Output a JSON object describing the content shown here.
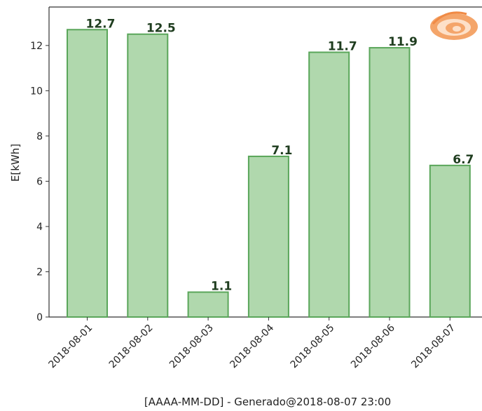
{
  "chart_data": {
    "type": "bar",
    "title": "",
    "xlabel": "[AAAA-MM-DD] - Generado@2018-08-07 23:00",
    "ylabel": "E[kWh]",
    "categories": [
      "2018-08-01",
      "2018-08-02",
      "2018-08-03",
      "2018-08-04",
      "2018-08-05",
      "2018-08-06",
      "2018-08-07"
    ],
    "values": [
      12.7,
      12.5,
      1.1,
      7.1,
      11.7,
      11.9,
      6.7
    ],
    "value_labels": [
      "12.7",
      "12.5",
      "1.1",
      "7.1",
      "11.7",
      "11.9",
      "6.7"
    ],
    "yticks": [
      0,
      2,
      4,
      6,
      8,
      10,
      12
    ],
    "ylim": [
      0,
      13.7
    ],
    "grid": false,
    "legend": "none",
    "colors": {
      "bar_fill": "#b0d8ad",
      "bar_edge": "#5aa65a",
      "label": "#1f3d1f",
      "axis": "#333333",
      "logo_outer": "#f4a56a",
      "logo_inner": "#fde0c8"
    },
    "logo_icon": "swirl-eye-logo"
  }
}
